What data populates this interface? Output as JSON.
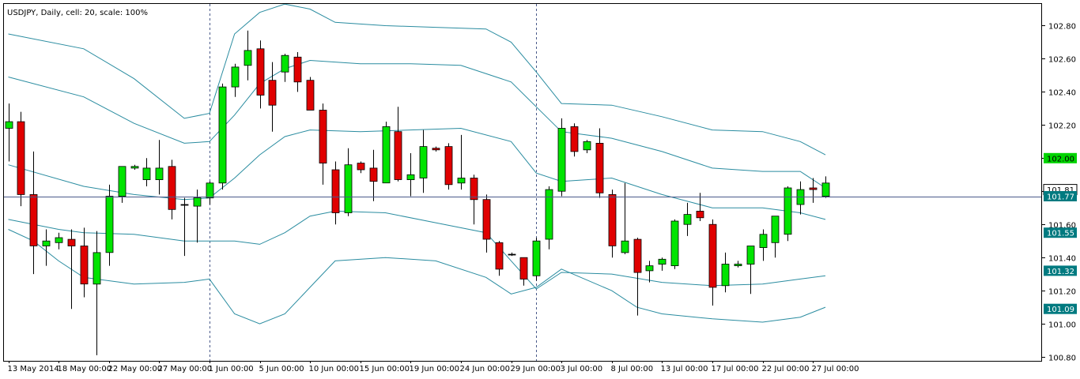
{
  "header": {
    "title": "USDJPY, Daily, cell: 20, scale: 100%"
  },
  "colors": {
    "background": "#ffffff",
    "frame": "#000000",
    "bull_fill": "#00e400",
    "bear_fill": "#e00000",
    "candle_outline": "#000000",
    "bands": "#2a8ca0",
    "price_line": "#4a5a8a",
    "label_bg": "#007a80",
    "label_text": "#ffffff",
    "highlight_bg": "#00d400",
    "separator": "#4a5a8a"
  },
  "chart_data": {
    "type": "candlestick",
    "symbol": "USDJPY",
    "timeframe": "Daily",
    "ylim": [
      100.7,
      102.95
    ],
    "y_ticks": [
      "102.80",
      "102.60",
      "102.40",
      "102.20",
      "102.00",
      "101.80",
      "101.60",
      "101.40",
      "101.20",
      "101.00",
      "100.80"
    ],
    "x_tick_labels": [
      {
        "index": 0,
        "label": "13 May 2014"
      },
      {
        "index": 4,
        "label": "18 May 00:00"
      },
      {
        "index": 8,
        "label": "22 May 00:00"
      },
      {
        "index": 12,
        "label": "27 May 00:00"
      },
      {
        "index": 16,
        "label": "1 Jun 00:00"
      },
      {
        "index": 20,
        "label": "5 Jun 00:00"
      },
      {
        "index": 24,
        "label": "10 Jun 00:00"
      },
      {
        "index": 28,
        "label": "15 Jun 00:00"
      },
      {
        "index": 32,
        "label": "19 Jun 00:00"
      },
      {
        "index": 36,
        "label": "24 Jun 00:00"
      },
      {
        "index": 40,
        "label": "29 Jun 00:00"
      },
      {
        "index": 44,
        "label": "3 Jul 00:00"
      },
      {
        "index": 48,
        "label": "8 Jul 00:00"
      },
      {
        "index": 52,
        "label": "13 Jul 00:00"
      },
      {
        "index": 56,
        "label": "17 Jul 00:00"
      },
      {
        "index": 60,
        "label": "22 Jul 00:00"
      },
      {
        "index": 64,
        "label": "27 Jul 00:00"
      }
    ],
    "period_separators": [
      16,
      42
    ],
    "candles": [
      {
        "o": 102.18,
        "h": 102.33,
        "l": 101.98,
        "c": 102.22
      },
      {
        "o": 102.22,
        "h": 102.28,
        "l": 101.71,
        "c": 101.78
      },
      {
        "o": 101.78,
        "h": 102.04,
        "l": 101.3,
        "c": 101.47
      },
      {
        "o": 101.47,
        "h": 101.57,
        "l": 101.35,
        "c": 101.5
      },
      {
        "o": 101.49,
        "h": 101.55,
        "l": 101.45,
        "c": 101.52
      },
      {
        "o": 101.51,
        "h": 101.57,
        "l": 101.09,
        "c": 101.47
      },
      {
        "o": 101.47,
        "h": 101.58,
        "l": 101.16,
        "c": 101.24
      },
      {
        "o": 101.24,
        "h": 101.56,
        "l": 100.81,
        "c": 101.43
      },
      {
        "o": 101.43,
        "h": 101.84,
        "l": 101.35,
        "c": 101.77
      },
      {
        "o": 101.77,
        "h": 101.95,
        "l": 101.73,
        "c": 101.95
      },
      {
        "o": 101.94,
        "h": 101.96,
        "l": 101.93,
        "c": 101.95
      },
      {
        "o": 101.87,
        "h": 102.0,
        "l": 101.83,
        "c": 101.94
      },
      {
        "o": 101.87,
        "h": 102.11,
        "l": 101.78,
        "c": 101.94
      },
      {
        "o": 101.95,
        "h": 101.99,
        "l": 101.63,
        "c": 101.69
      },
      {
        "o": 101.72,
        "h": 101.76,
        "l": 101.41,
        "c": 101.72
      },
      {
        "o": 101.71,
        "h": 101.81,
        "l": 101.49,
        "c": 101.76
      },
      {
        "o": 101.76,
        "h": 101.86,
        "l": 101.72,
        "c": 101.85
      },
      {
        "o": 101.85,
        "h": 102.45,
        "l": 101.81,
        "c": 102.43
      },
      {
        "o": 102.43,
        "h": 102.57,
        "l": 102.37,
        "c": 102.55
      },
      {
        "o": 102.56,
        "h": 102.77,
        "l": 102.47,
        "c": 102.65
      },
      {
        "o": 102.66,
        "h": 102.71,
        "l": 102.3,
        "c": 102.38
      },
      {
        "o": 102.47,
        "h": 102.58,
        "l": 102.16,
        "c": 102.32
      },
      {
        "o": 102.52,
        "h": 102.63,
        "l": 102.46,
        "c": 102.62
      },
      {
        "o": 102.61,
        "h": 102.64,
        "l": 102.4,
        "c": 102.46
      },
      {
        "o": 102.47,
        "h": 102.49,
        "l": 102.29,
        "c": 102.29
      },
      {
        "o": 102.29,
        "h": 102.33,
        "l": 101.84,
        "c": 101.97
      },
      {
        "o": 101.93,
        "h": 101.98,
        "l": 101.6,
        "c": 101.67
      },
      {
        "o": 101.67,
        "h": 102.06,
        "l": 101.65,
        "c": 101.96
      },
      {
        "o": 101.97,
        "h": 101.98,
        "l": 101.91,
        "c": 101.93
      },
      {
        "o": 101.94,
        "h": 102.05,
        "l": 101.74,
        "c": 101.86
      },
      {
        "o": 101.85,
        "h": 102.22,
        "l": 101.85,
        "c": 102.19
      },
      {
        "o": 102.16,
        "h": 102.31,
        "l": 101.86,
        "c": 101.87
      },
      {
        "o": 101.87,
        "h": 102.03,
        "l": 101.77,
        "c": 101.9
      },
      {
        "o": 101.88,
        "h": 102.17,
        "l": 101.79,
        "c": 102.07
      },
      {
        "o": 102.06,
        "h": 102.07,
        "l": 102.04,
        "c": 102.05
      },
      {
        "o": 102.07,
        "h": 102.09,
        "l": 101.81,
        "c": 101.84
      },
      {
        "o": 101.85,
        "h": 102.14,
        "l": 101.81,
        "c": 101.88
      },
      {
        "o": 101.88,
        "h": 101.9,
        "l": 101.6,
        "c": 101.75
      },
      {
        "o": 101.75,
        "h": 101.78,
        "l": 101.43,
        "c": 101.51
      },
      {
        "o": 101.49,
        "h": 101.5,
        "l": 101.29,
        "c": 101.33
      },
      {
        "o": 101.42,
        "h": 101.43,
        "l": 101.41,
        "c": 101.42
      },
      {
        "o": 101.4,
        "h": 101.4,
        "l": 101.23,
        "c": 101.27
      },
      {
        "o": 101.29,
        "h": 101.52,
        "l": 101.26,
        "c": 101.5
      },
      {
        "o": 101.51,
        "h": 101.83,
        "l": 101.45,
        "c": 101.81
      },
      {
        "o": 101.8,
        "h": 102.24,
        "l": 101.77,
        "c": 102.18
      },
      {
        "o": 102.19,
        "h": 102.21,
        "l": 102.01,
        "c": 102.04
      },
      {
        "o": 102.05,
        "h": 102.11,
        "l": 102.03,
        "c": 102.1
      },
      {
        "o": 102.09,
        "h": 102.18,
        "l": 101.76,
        "c": 101.79
      },
      {
        "o": 101.78,
        "h": 101.81,
        "l": 101.4,
        "c": 101.47
      },
      {
        "o": 101.43,
        "h": 101.85,
        "l": 101.42,
        "c": 101.5
      },
      {
        "o": 101.51,
        "h": 101.52,
        "l": 101.05,
        "c": 101.31
      },
      {
        "o": 101.32,
        "h": 101.38,
        "l": 101.25,
        "c": 101.35
      },
      {
        "o": 101.36,
        "h": 101.4,
        "l": 101.32,
        "c": 101.39
      },
      {
        "o": 101.35,
        "h": 101.63,
        "l": 101.33,
        "c": 101.62
      },
      {
        "o": 101.6,
        "h": 101.73,
        "l": 101.53,
        "c": 101.66
      },
      {
        "o": 101.68,
        "h": 101.79,
        "l": 101.62,
        "c": 101.64
      },
      {
        "o": 101.6,
        "h": 101.63,
        "l": 101.11,
        "c": 101.22
      },
      {
        "o": 101.23,
        "h": 101.43,
        "l": 101.19,
        "c": 101.36
      },
      {
        "o": 101.35,
        "h": 101.38,
        "l": 101.34,
        "c": 101.36
      },
      {
        "o": 101.36,
        "h": 101.46,
        "l": 101.18,
        "c": 101.47
      },
      {
        "o": 101.46,
        "h": 101.57,
        "l": 101.38,
        "c": 101.54
      },
      {
        "o": 101.49,
        "h": 101.65,
        "l": 101.4,
        "c": 101.65
      },
      {
        "o": 101.54,
        "h": 101.83,
        "l": 101.5,
        "c": 101.82
      },
      {
        "o": 101.72,
        "h": 101.86,
        "l": 101.66,
        "c": 101.81
      },
      {
        "o": 101.82,
        "h": 101.88,
        "l": 101.73,
        "c": 101.81
      },
      {
        "o": 101.77,
        "h": 101.89,
        "l": 101.76,
        "c": 101.85
      }
    ],
    "bands": [
      {
        "name": "band-outer-upper",
        "values": [
          [
            0,
            102.75
          ],
          [
            6,
            102.66
          ],
          [
            10,
            102.48
          ],
          [
            14,
            102.24
          ],
          [
            16,
            102.27
          ],
          [
            18,
            102.75
          ],
          [
            20,
            102.88
          ],
          [
            22,
            102.93
          ],
          [
            24,
            102.9
          ],
          [
            26,
            102.82
          ],
          [
            30,
            102.8
          ],
          [
            34,
            102.79
          ],
          [
            38,
            102.78
          ],
          [
            40,
            102.7
          ],
          [
            42,
            102.52
          ],
          [
            44,
            102.33
          ],
          [
            48,
            102.32
          ],
          [
            52,
            102.25
          ],
          [
            56,
            102.17
          ],
          [
            60,
            102.16
          ],
          [
            63,
            102.1
          ],
          [
            65,
            102.02
          ]
        ]
      },
      {
        "name": "band-middle-upper",
        "values": [
          [
            0,
            102.49
          ],
          [
            6,
            102.37
          ],
          [
            10,
            102.21
          ],
          [
            14,
            102.09
          ],
          [
            16,
            102.1
          ],
          [
            18,
            102.26
          ],
          [
            20,
            102.45
          ],
          [
            22,
            102.54
          ],
          [
            24,
            102.59
          ],
          [
            28,
            102.57
          ],
          [
            32,
            102.57
          ],
          [
            36,
            102.56
          ],
          [
            40,
            102.46
          ],
          [
            42,
            102.31
          ],
          [
            44,
            102.16
          ],
          [
            48,
            102.12
          ],
          [
            52,
            102.04
          ],
          [
            56,
            101.94
          ],
          [
            60,
            101.92
          ],
          [
            63,
            101.92
          ],
          [
            65,
            101.82
          ]
        ]
      },
      {
        "name": "band-center",
        "values": [
          [
            0,
            101.96
          ],
          [
            6,
            101.83
          ],
          [
            10,
            101.78
          ],
          [
            14,
            101.75
          ],
          [
            16,
            101.76
          ],
          [
            18,
            101.88
          ],
          [
            20,
            102.02
          ],
          [
            22,
            102.13
          ],
          [
            24,
            102.17
          ],
          [
            28,
            102.16
          ],
          [
            32,
            102.17
          ],
          [
            36,
            102.18
          ],
          [
            40,
            102.1
          ],
          [
            42,
            101.91
          ],
          [
            44,
            101.86
          ],
          [
            48,
            101.88
          ],
          [
            52,
            101.78
          ],
          [
            56,
            101.7
          ],
          [
            60,
            101.7
          ],
          [
            63,
            101.67
          ],
          [
            65,
            101.63
          ]
        ]
      },
      {
        "name": "band-middle-lower",
        "values": [
          [
            0,
            101.63
          ],
          [
            4,
            101.57
          ],
          [
            6,
            101.55
          ],
          [
            10,
            101.54
          ],
          [
            14,
            101.5
          ],
          [
            16,
            101.5
          ],
          [
            18,
            101.5
          ],
          [
            20,
            101.48
          ],
          [
            22,
            101.55
          ],
          [
            24,
            101.65
          ],
          [
            26,
            101.68
          ],
          [
            30,
            101.67
          ],
          [
            34,
            101.61
          ],
          [
            38,
            101.55
          ],
          [
            40,
            101.38
          ],
          [
            42,
            101.21
          ],
          [
            44,
            101.31
          ],
          [
            48,
            101.3
          ],
          [
            52,
            101.25
          ],
          [
            56,
            101.23
          ],
          [
            60,
            101.24
          ],
          [
            63,
            101.27
          ],
          [
            65,
            101.29
          ]
        ]
      },
      {
        "name": "band-outer-lower",
        "values": [
          [
            0,
            101.57
          ],
          [
            2,
            101.5
          ],
          [
            4,
            101.38
          ],
          [
            6,
            101.28
          ],
          [
            10,
            101.24
          ],
          [
            14,
            101.25
          ],
          [
            16,
            101.27
          ],
          [
            18,
            101.06
          ],
          [
            20,
            101.0
          ],
          [
            22,
            101.06
          ],
          [
            24,
            101.22
          ],
          [
            26,
            101.38
          ],
          [
            30,
            101.4
          ],
          [
            34,
            101.38
          ],
          [
            38,
            101.28
          ],
          [
            40,
            101.18
          ],
          [
            42,
            101.22
          ],
          [
            44,
            101.33
          ],
          [
            48,
            101.2
          ],
          [
            50,
            101.1
          ],
          [
            52,
            101.06
          ],
          [
            56,
            101.03
          ],
          [
            58,
            101.02
          ],
          [
            60,
            101.01
          ],
          [
            63,
            101.04
          ],
          [
            65,
            101.1
          ]
        ]
      }
    ],
    "current_price": 101.77,
    "price_labels": [
      {
        "value": 102.0,
        "label": "102.00",
        "style": "highlight"
      },
      {
        "value": 101.81,
        "label": "101.81",
        "style": "current"
      },
      {
        "value": 101.77,
        "label": "101.77",
        "style": "band"
      },
      {
        "value": 101.55,
        "label": "101.55",
        "style": "band"
      },
      {
        "value": 101.32,
        "label": "101.32",
        "style": "band"
      },
      {
        "value": 101.09,
        "label": "101.09",
        "style": "band"
      }
    ]
  }
}
